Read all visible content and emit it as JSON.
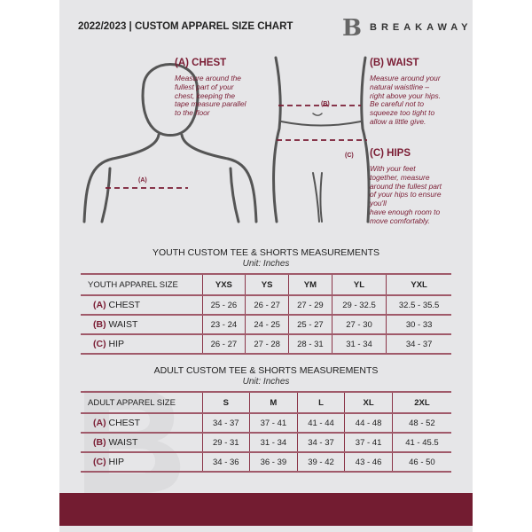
{
  "header": {
    "title": "2022/2023  |  CUSTOM APPAREL SIZE CHART",
    "brand": "BREAKAWAY",
    "logo": "B"
  },
  "guides": {
    "chest": {
      "heading": "(A) CHEST",
      "text": [
        "Measure around the",
        "fullest part of your",
        "chest, keeping the",
        "tape measure parallel",
        "to the floor"
      ],
      "marker": "(A)"
    },
    "waist": {
      "heading": "(B) WAIST",
      "text": [
        "Measure around your",
        "natural waistline –",
        "right above your hips.",
        "Be careful not to",
        "squeeze too tight to",
        "allow a little give."
      ],
      "marker": "(B)"
    },
    "hips": {
      "heading": "(C) HIPS",
      "text": [
        "With your feet",
        "together, measure",
        "around the fullest part",
        "of your hips to ensure",
        "you'll",
        "have enough room to",
        "move comfortably."
      ],
      "marker": "(C)"
    }
  },
  "youth": {
    "title": "YOUTH CUSTOM TEE & SHORTS MEASUREMENTS",
    "unit": "Unit: Inches",
    "label": "YOUTH APPAREL SIZE",
    "sizes": [
      "YXS",
      "YS",
      "YM",
      "YL",
      "YXL"
    ],
    "rows": [
      {
        "letter": "(A)",
        "name": "CHEST",
        "values": [
          "25 - 26",
          "26 - 27",
          "27 - 29",
          "29 - 32.5",
          "32.5 - 35.5"
        ]
      },
      {
        "letter": "(B)",
        "name": "WAIST",
        "values": [
          "23 - 24",
          "24 - 25",
          "25 - 27",
          "27 - 30",
          "30 - 33"
        ]
      },
      {
        "letter": "(C)",
        "name": "HIP",
        "values": [
          "26 - 27",
          "27 - 28",
          "28 - 31",
          "31 - 34",
          "34 - 37"
        ]
      }
    ]
  },
  "adult": {
    "title": "ADULT CUSTOM TEE & SHORTS MEASUREMENTS",
    "unit": "Unit: Inches",
    "label": "ADULT APPAREL SIZE",
    "sizes": [
      "S",
      "M",
      "L",
      "XL",
      "2XL"
    ],
    "rows": [
      {
        "letter": "(A)",
        "name": "CHEST",
        "values": [
          "34 - 37",
          "37 - 41",
          "41 - 44",
          "44 - 48",
          "48 - 52"
        ]
      },
      {
        "letter": "(B)",
        "name": "WAIST",
        "values": [
          "29 - 31",
          "31 - 34",
          "34 - 37",
          "37 - 41",
          "41 - 45.5"
        ]
      },
      {
        "letter": "(C)",
        "name": "HIP",
        "values": [
          "34 - 36",
          "36 - 39",
          "39 - 42",
          "43 - 46",
          "46 - 50"
        ]
      }
    ]
  },
  "colors": {
    "accent": "#731c31",
    "background": "#e6e6e8"
  }
}
